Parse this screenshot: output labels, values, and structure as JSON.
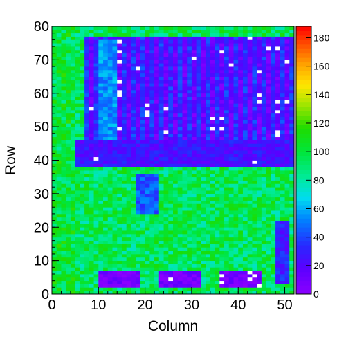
{
  "chart_data": {
    "type": "heatmap",
    "title": "",
    "xlabel": "Column",
    "ylabel": "Row",
    "xlim": [
      0,
      52
    ],
    "ylim": [
      0,
      80
    ],
    "zlim": [
      0,
      188
    ],
    "x_ticks": [
      "0",
      "10",
      "20",
      "30",
      "40",
      "50"
    ],
    "y_ticks": [
      "0",
      "10",
      "20",
      "30",
      "40",
      "50",
      "60",
      "70",
      "80"
    ],
    "z_ticks": [
      "0",
      "20",
      "40",
      "60",
      "80",
      "100",
      "120",
      "140",
      "160",
      "180"
    ],
    "grid": false,
    "palette": "rainbow (violet=0 to red=188)",
    "zero_cell_color": "#ffffff",
    "n_columns": 52,
    "n_rows": 80,
    "regions": [
      {
        "name": "background",
        "columns": [
          0,
          52
        ],
        "rows": [
          0,
          80
        ],
        "approx_value": 95
      },
      {
        "name": "left edge strip",
        "columns": [
          0,
          5
        ],
        "rows": [
          0,
          80
        ],
        "approx_value": 100
      },
      {
        "name": "upper stripes",
        "columns": [
          7,
          52
        ],
        "rows": [
          38,
          77
        ],
        "approx_value": 18
      },
      {
        "name": "upper block low band",
        "columns": [
          5,
          52
        ],
        "rows": [
          38,
          46
        ],
        "approx_value": 25
      },
      {
        "name": "cyan column band",
        "columns": [
          10,
          14
        ],
        "rows": [
          46,
          76
        ],
        "approx_value": 55
      },
      {
        "name": "middle blue patch",
        "columns": [
          18,
          23
        ],
        "rows": [
          24,
          36
        ],
        "approx_value": 45
      },
      {
        "name": "right lower strip",
        "columns": [
          48,
          51
        ],
        "rows": [
          3,
          22
        ],
        "approx_value": 30
      },
      {
        "name": "bottom box 1",
        "columns": [
          10,
          19
        ],
        "rows": [
          2,
          7
        ],
        "approx_value": 8
      },
      {
        "name": "bottom box 2",
        "columns": [
          23,
          32
        ],
        "rows": [
          2,
          7
        ],
        "approx_value": 8
      },
      {
        "name": "bottom box 3",
        "columns": [
          36,
          45
        ],
        "rows": [
          2,
          7
        ],
        "approx_value": 8
      }
    ]
  }
}
